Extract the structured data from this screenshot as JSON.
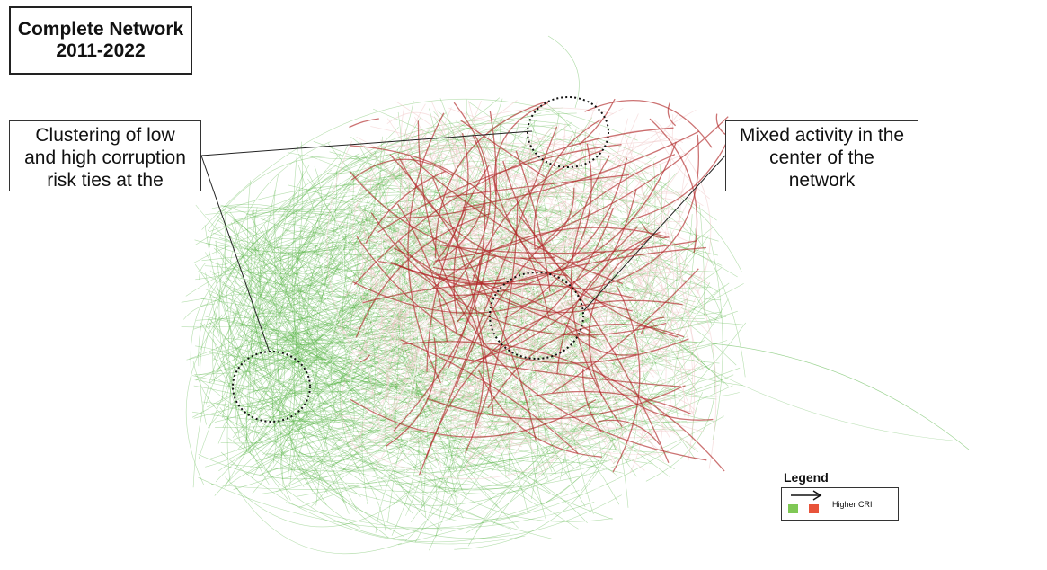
{
  "title": {
    "line1": "Complete Network",
    "line2": "2011-2022"
  },
  "annotations": {
    "left": {
      "line1": "Clustering of low",
      "line2": "and high corruption",
      "line3": "risk ties at the"
    },
    "right": {
      "line1": "Mixed activity in the",
      "line2": "center of the",
      "line3": "network"
    }
  },
  "legend": {
    "title": "Legend",
    "label": "Higher CRI",
    "low_color": "#7fc855",
    "high_color": "#e8533a",
    "arrow_icon": "right-arrow-icon"
  },
  "colors": {
    "edge_low": "#5ab54a",
    "edge_mid": "#f0c8c8",
    "edge_high": "#b02828"
  }
}
